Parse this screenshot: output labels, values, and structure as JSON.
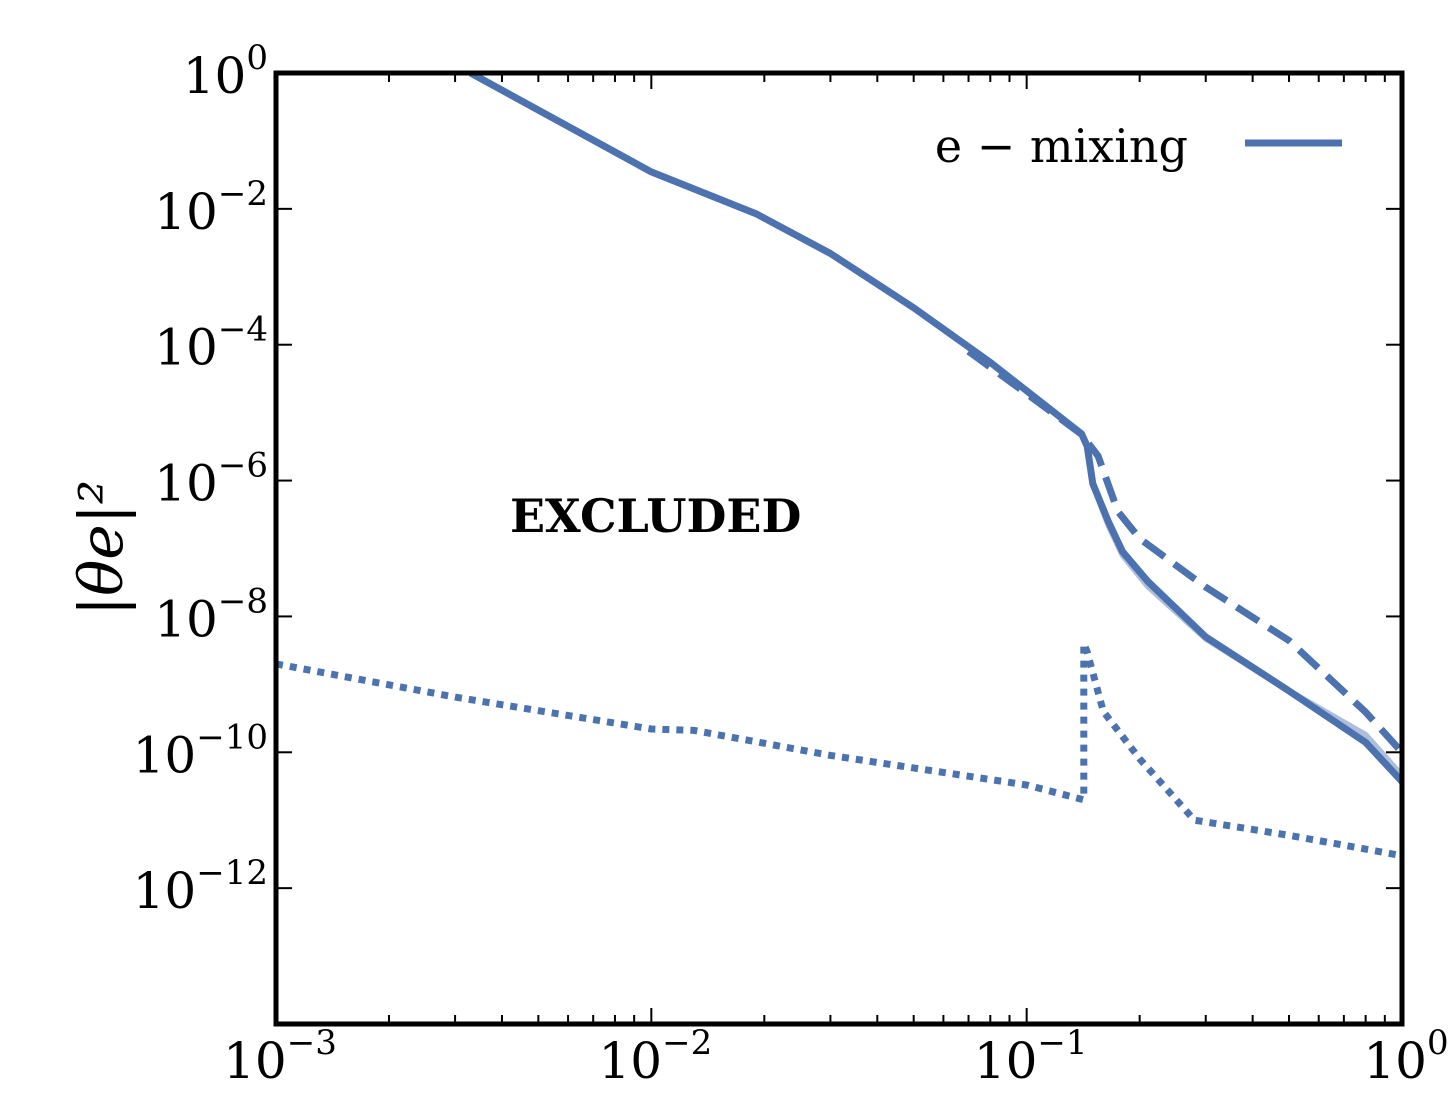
{
  "chart_data": {
    "type": "line",
    "title": "",
    "xlabel": "",
    "ylabel": "|θe|²",
    "xscale": "log",
    "yscale": "log",
    "xlim": [
      0.001,
      1
    ],
    "ylim": [
      1e-14,
      1
    ],
    "x_ticks": [
      {
        "base": "10",
        "exp": "−3"
      },
      {
        "base": "10",
        "exp": "−2"
      },
      {
        "base": "10",
        "exp": "−1"
      },
      {
        "base": "10",
        "exp": "0"
      }
    ],
    "y_ticks": [
      {
        "base": "10",
        "exp": "0"
      },
      {
        "base": "10",
        "exp": "−2"
      },
      {
        "base": "10",
        "exp": "−4"
      },
      {
        "base": "10",
        "exp": "−6"
      },
      {
        "base": "10",
        "exp": "−8"
      },
      {
        "base": "10",
        "exp": "−10"
      },
      {
        "base": "10",
        "exp": "−12"
      }
    ],
    "legend": {
      "position": "top-right",
      "entries": [
        {
          "label": "e − mixing",
          "style": "solid"
        }
      ]
    },
    "annotations": [
      {
        "text": "EXCLUDED"
      }
    ],
    "line_color": "#4c72b0",
    "series": [
      {
        "style": "solid",
        "x": [
          0.0033,
          0.01,
          0.019,
          0.03,
          0.05,
          0.08,
          0.14,
          0.145,
          0.15,
          0.165,
          0.18,
          0.21,
          0.3,
          0.5,
          0.8,
          1.0
        ],
        "y": [
          1.0,
          0.035,
          0.0085,
          0.0022,
          0.00035,
          5.5e-05,
          4.9e-06,
          3.2e-06,
          9e-07,
          2.5e-07,
          9e-08,
          3.3e-08,
          5e-09,
          8e-10,
          1.4e-10,
          3.7e-11
        ]
      },
      {
        "style": "solid-faint",
        "x": [
          0.145,
          0.15,
          0.165,
          0.18,
          0.21,
          0.3,
          0.5,
          0.8,
          1.0
        ],
        "y": [
          3.3e-06,
          9e-07,
          2.2e-07,
          8e-08,
          2.8e-08,
          4.7e-09,
          8e-10,
          1.8e-10,
          4.5e-11
        ]
      },
      {
        "style": "dashed",
        "x": [
          0.07,
          0.1,
          0.14,
          0.155,
          0.175,
          0.2,
          0.3,
          0.5,
          0.8,
          1.0
        ],
        "y": [
          8e-05,
          1.9e-05,
          4.8e-06,
          2.3e-06,
          3.5e-07,
          1.4e-07,
          2.7e-08,
          4.4e-09,
          3.9e-10,
          1e-10
        ]
      },
      {
        "style": "dotted",
        "x": [
          0.001,
          0.003,
          0.01,
          0.013,
          0.03,
          0.1,
          0.142,
          0.142,
          0.145,
          0.16,
          0.2,
          0.28,
          0.5,
          1.0
        ],
        "y": [
          2e-09,
          6.5e-10,
          2.2e-10,
          2.1e-10,
          9e-11,
          3.3e-11,
          2e-11,
          4e-09,
          3e-09,
          4e-10,
          8e-11,
          1e-11,
          6e-12,
          3e-12
        ]
      }
    ]
  }
}
